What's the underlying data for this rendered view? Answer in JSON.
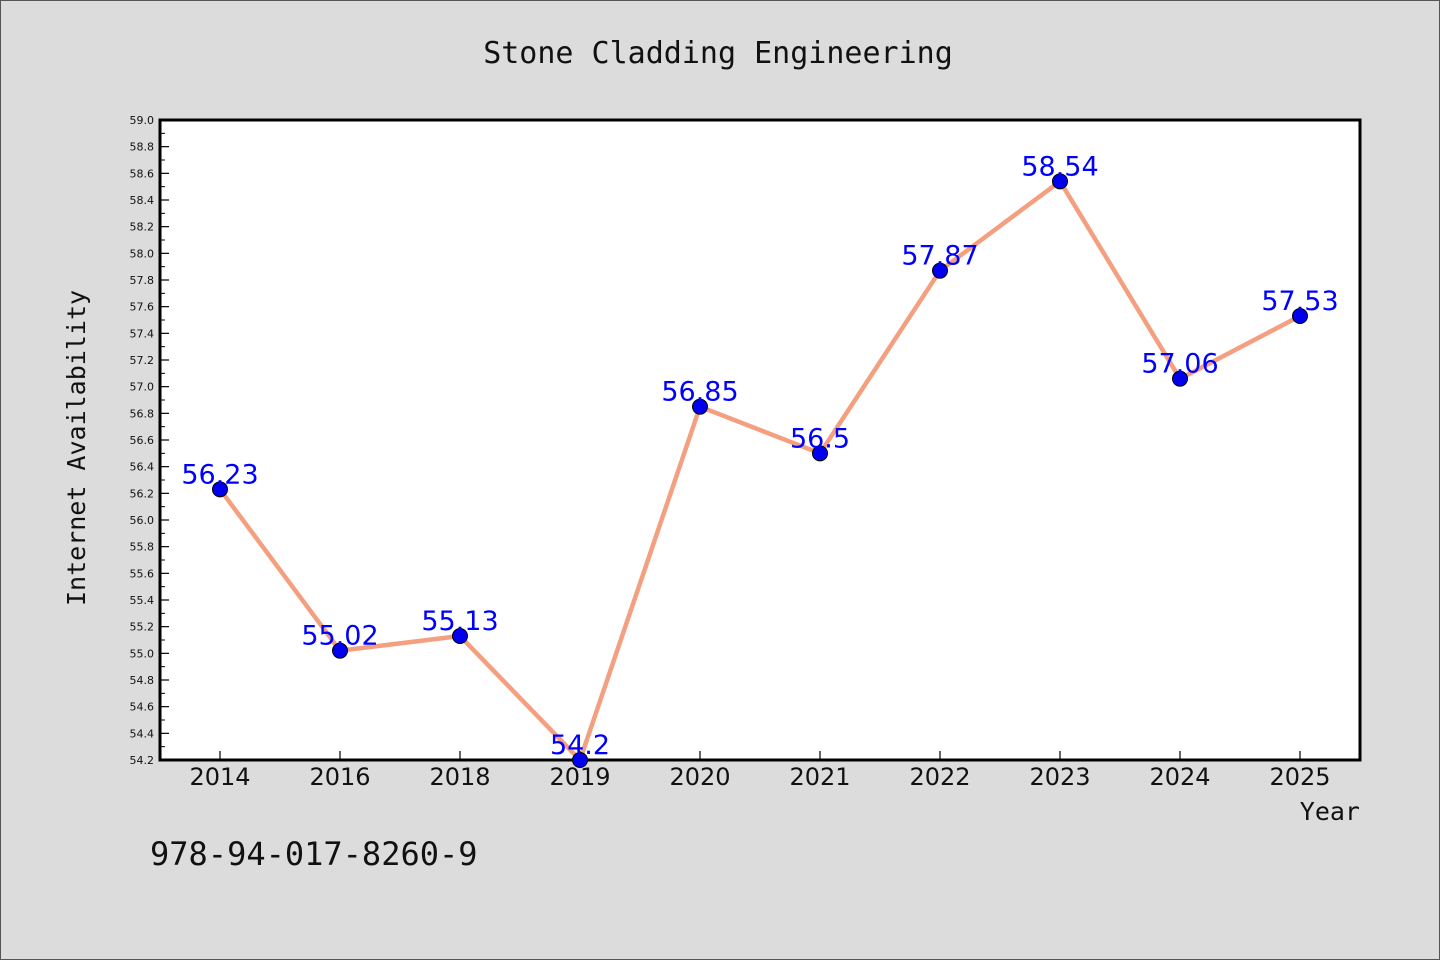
{
  "chart_data": {
    "type": "line",
    "title": "Stone Cladding Engineering",
    "xlabel": "Year",
    "ylabel": "Internet Availability",
    "categories": [
      "2014",
      "2016",
      "2018",
      "2019",
      "2020",
      "2021",
      "2022",
      "2023",
      "2024",
      "2025"
    ],
    "values": [
      56.23,
      55.02,
      55.13,
      54.2,
      56.85,
      56.5,
      57.87,
      58.54,
      57.06,
      57.53
    ],
    "data_labels": [
      "56.23",
      "55.02",
      "55.13",
      "54.2",
      "56.85",
      "56.5",
      "57.87",
      "58.54",
      "57.06",
      "57.53"
    ],
    "ylim": [
      54.2,
      59.0
    ],
    "yticks": [
      "54.2",
      "54.4",
      "54.6",
      "54.8",
      "55.0",
      "55.2",
      "55.4",
      "55.6",
      "55.8",
      "56.0",
      "56.2",
      "56.4",
      "56.6",
      "56.8",
      "57.0",
      "57.2",
      "57.4",
      "57.6",
      "57.8",
      "58.0",
      "58.2",
      "58.4",
      "58.6",
      "58.8",
      "59.0"
    ],
    "grid": false,
    "line_color": "#f4a080",
    "marker_color": "#0000ee",
    "label_color": "#0000ff"
  },
  "footnote": "978-94-017-8260-9"
}
